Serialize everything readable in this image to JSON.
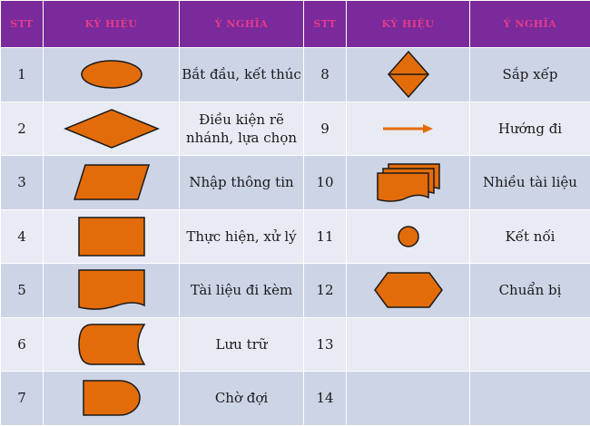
{
  "header": {
    "stt": "STT",
    "symbol": "KÝ HIỆU",
    "meaning": "Ý NGHĨA"
  },
  "rows": [
    {
      "left": {
        "stt": "1",
        "symbol": "ellipse-icon",
        "meaning": "Bắt đầu, kết thúc"
      },
      "right": {
        "stt": "8",
        "symbol": "sort-diamond-icon",
        "meaning": "Sắp xếp"
      }
    },
    {
      "left": {
        "stt": "2",
        "symbol": "diamond-icon",
        "meaning": "Điều kiện rẽ nhánh, lựa chọn"
      },
      "right": {
        "stt": "9",
        "symbol": "arrow-right-icon",
        "meaning": "Hướng đi"
      }
    },
    {
      "left": {
        "stt": "3",
        "symbol": "parallelogram-icon",
        "meaning": "Nhập thông tin"
      },
      "right": {
        "stt": "10",
        "symbol": "multi-document-icon",
        "meaning": "Nhiều tài liệu"
      }
    },
    {
      "left": {
        "stt": "4",
        "symbol": "rectangle-icon",
        "meaning": "Thực hiện, xử lý"
      },
      "right": {
        "stt": "11",
        "symbol": "circle-connector-icon",
        "meaning": "Kết nối"
      }
    },
    {
      "left": {
        "stt": "5",
        "symbol": "document-icon",
        "meaning": "Tài liệu đi kèm"
      },
      "right": {
        "stt": "12",
        "symbol": "hexagon-icon",
        "meaning": "Chuẩn bị"
      }
    },
    {
      "left": {
        "stt": "6",
        "symbol": "stored-data-icon",
        "meaning": "Lưu trữ"
      },
      "right": {
        "stt": "13",
        "symbol": "",
        "meaning": ""
      }
    },
    {
      "left": {
        "stt": "7",
        "symbol": "delay-icon",
        "meaning": "Chờ đợi"
      },
      "right": {
        "stt": "14",
        "symbol": "",
        "meaning": ""
      }
    }
  ],
  "colors": {
    "header_bg": "#7a2a9a",
    "header_text": "#e23a8a",
    "row_odd": "#cdd4e6",
    "row_even": "#e8ebf3",
    "shape_fill": "#e36c0a"
  }
}
